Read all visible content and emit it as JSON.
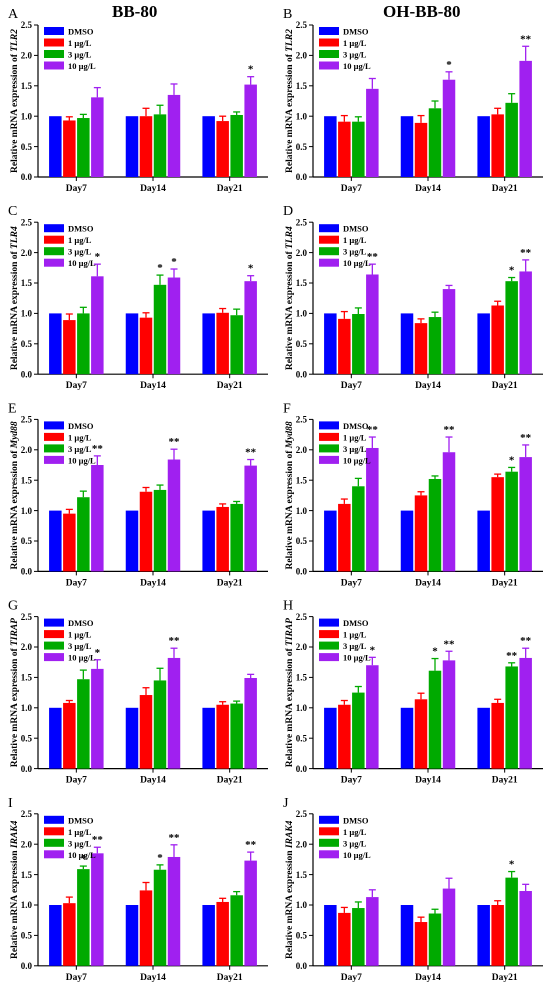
{
  "column_titles": [
    "BB-80",
    "OH-BB-80"
  ],
  "colors": {
    "DMSO": "#0000ff",
    "1 μg/L": "#ff0000",
    "3 μg/L": "#00aa00",
    "10 μg/L": "#a020f0"
  },
  "chart_data": [
    {
      "panel": "A",
      "type": "bar",
      "categories": [
        "Day7",
        "Day14",
        "Day21"
      ],
      "ylabel_prefix": "Relative mRNA expression of ",
      "gene": "TLR2",
      "ylim": [
        0,
        2.5
      ],
      "yticks": [
        "0.0",
        "0.5",
        "1.0",
        "1.5",
        "2.0",
        "2.5"
      ],
      "series": [
        {
          "name": "DMSO",
          "values": [
            1.0,
            1.0,
            1.0
          ],
          "errors": [
            0.0,
            0.0,
            0.0
          ]
        },
        {
          "name": "1 μg/L",
          "values": [
            0.93,
            1.0,
            0.92
          ],
          "errors": [
            0.06,
            0.13,
            0.08
          ]
        },
        {
          "name": "3 μg/L",
          "values": [
            0.97,
            1.03,
            1.02
          ],
          "errors": [
            0.06,
            0.15,
            0.05
          ]
        },
        {
          "name": "10 μg/L",
          "values": [
            1.31,
            1.35,
            1.52
          ],
          "errors": [
            0.16,
            0.18,
            0.13
          ]
        }
      ],
      "marks": [
        [
          "",
          "",
          ""
        ],
        [
          "",
          "",
          ""
        ],
        [
          "",
          "",
          ""
        ],
        [
          "",
          "",
          "*"
        ]
      ]
    },
    {
      "panel": "B",
      "type": "bar",
      "categories": [
        "Day7",
        "Day14",
        "Day21"
      ],
      "ylabel_prefix": "Relative mRNA expression of ",
      "gene": "TLR2",
      "ylim": [
        0,
        2.5
      ],
      "yticks": [
        "0.0",
        "0.5",
        "1.0",
        "1.5",
        "2.0",
        "2.5"
      ],
      "series": [
        {
          "name": "DMSO",
          "values": [
            1.0,
            1.0,
            1.0
          ],
          "errors": [
            0.0,
            0.0,
            0.0
          ]
        },
        {
          "name": "1 μg/L",
          "values": [
            0.91,
            0.89,
            1.03
          ],
          "errors": [
            0.1,
            0.12,
            0.1
          ]
        },
        {
          "name": "3 μg/L",
          "values": [
            0.91,
            1.13,
            1.22
          ],
          "errors": [
            0.08,
            0.12,
            0.15
          ]
        },
        {
          "name": "10 μg/L",
          "values": [
            1.45,
            1.6,
            1.91
          ],
          "errors": [
            0.17,
            0.13,
            0.24
          ]
        }
      ],
      "marks": [
        [
          "",
          "",
          ""
        ],
        [
          "",
          "",
          ""
        ],
        [
          "",
          "",
          ""
        ],
        [
          "",
          "*",
          "**"
        ]
      ]
    },
    {
      "panel": "C",
      "type": "bar",
      "categories": [
        "Day7",
        "Day14",
        "Day21"
      ],
      "ylabel_prefix": "Relative mRNA expression of ",
      "gene": "TLR4",
      "ylim": [
        0,
        2.5
      ],
      "yticks": [
        "0.0",
        "0.5",
        "1.0",
        "1.5",
        "2.0",
        "2.5"
      ],
      "series": [
        {
          "name": "DMSO",
          "values": [
            1.0,
            1.0,
            1.0
          ],
          "errors": [
            0.0,
            0.0,
            0.0
          ]
        },
        {
          "name": "1 μg/L",
          "values": [
            0.89,
            0.93,
            1.01
          ],
          "errors": [
            0.1,
            0.08,
            0.07
          ]
        },
        {
          "name": "3 μg/L",
          "values": [
            1.0,
            1.47,
            0.97
          ],
          "errors": [
            0.1,
            0.16,
            0.1
          ]
        },
        {
          "name": "10 μg/L",
          "values": [
            1.61,
            1.59,
            1.53
          ],
          "errors": [
            0.2,
            0.14,
            0.09
          ]
        }
      ],
      "marks": [
        [
          "",
          "",
          ""
        ],
        [
          "",
          "",
          ""
        ],
        [
          "",
          "*",
          ""
        ],
        [
          "*",
          "*",
          "*"
        ]
      ]
    },
    {
      "panel": "D",
      "type": "bar",
      "categories": [
        "Day7",
        "Day14",
        "Day21"
      ],
      "ylabel_prefix": "Relative mRNA expression of ",
      "gene": "TLR4",
      "ylim": [
        0,
        2.5
      ],
      "yticks": [
        "0.0",
        "0.5",
        "1.0",
        "1.5",
        "2.0",
        "2.5"
      ],
      "series": [
        {
          "name": "DMSO",
          "values": [
            1.0,
            1.0,
            1.0
          ],
          "errors": [
            0.0,
            0.0,
            0.0
          ]
        },
        {
          "name": "1 μg/L",
          "values": [
            0.91,
            0.84,
            1.13
          ],
          "errors": [
            0.12,
            0.07,
            0.07
          ]
        },
        {
          "name": "3 μg/L",
          "values": [
            0.99,
            0.94,
            1.53
          ],
          "errors": [
            0.1,
            0.08,
            0.06
          ]
        },
        {
          "name": "10 μg/L",
          "values": [
            1.64,
            1.4,
            1.69
          ],
          "errors": [
            0.17,
            0.06,
            0.19
          ]
        }
      ],
      "marks": [
        [
          "",
          "",
          ""
        ],
        [
          "",
          "",
          ""
        ],
        [
          "",
          "",
          "*"
        ],
        [
          "**",
          "",
          "**"
        ]
      ]
    },
    {
      "panel": "E",
      "type": "bar",
      "categories": [
        "Day7",
        "Day14",
        "Day21"
      ],
      "ylabel_prefix": "Relative mRNA expression of ",
      "gene": "Myd88",
      "ylim": [
        0,
        2.5
      ],
      "yticks": [
        "0.0",
        "0.5",
        "1.0",
        "1.5",
        "2.0",
        "2.5"
      ],
      "series": [
        {
          "name": "DMSO",
          "values": [
            1.0,
            1.0,
            1.0
          ],
          "errors": [
            0.0,
            0.0,
            0.0
          ]
        },
        {
          "name": "1 μg/L",
          "values": [
            0.95,
            1.31,
            1.06
          ],
          "errors": [
            0.07,
            0.07,
            0.05
          ]
        },
        {
          "name": "3 μg/L",
          "values": [
            1.22,
            1.34,
            1.11
          ],
          "errors": [
            0.1,
            0.08,
            0.04
          ]
        },
        {
          "name": "10 μg/L",
          "values": [
            1.75,
            1.84,
            1.74
          ],
          "errors": [
            0.15,
            0.17,
            0.1
          ]
        }
      ],
      "marks": [
        [
          "",
          "",
          ""
        ],
        [
          "",
          "",
          ""
        ],
        [
          "",
          "",
          ""
        ],
        [
          "**",
          "**",
          "**"
        ]
      ]
    },
    {
      "panel": "F",
      "type": "bar",
      "categories": [
        "Day7",
        "Day14",
        "Day21"
      ],
      "ylabel_prefix": "Relative mRNA expression of ",
      "gene": "Myd88",
      "ylim": [
        0,
        2.5
      ],
      "yticks": [
        "0.0",
        "0.5",
        "1.0",
        "1.5",
        "2.0",
        "2.5"
      ],
      "series": [
        {
          "name": "DMSO",
          "values": [
            1.0,
            1.0,
            1.0
          ],
          "errors": [
            0.0,
            0.0,
            0.0
          ]
        },
        {
          "name": "1 μg/L",
          "values": [
            1.11,
            1.25,
            1.55
          ],
          "errors": [
            0.08,
            0.06,
            0.05
          ]
        },
        {
          "name": "3 μg/L",
          "values": [
            1.4,
            1.52,
            1.64
          ],
          "errors": [
            0.13,
            0.05,
            0.07
          ]
        },
        {
          "name": "10 μg/L",
          "values": [
            2.03,
            1.96,
            1.88
          ],
          "errors": [
            0.18,
            0.25,
            0.2
          ]
        }
      ],
      "marks": [
        [
          "",
          "",
          ""
        ],
        [
          "",
          "",
          ""
        ],
        [
          "",
          "",
          "*"
        ],
        [
          "**",
          "**",
          "**"
        ]
      ]
    },
    {
      "panel": "G",
      "type": "bar",
      "categories": [
        "Day7",
        "Day14",
        "Day21"
      ],
      "ylabel_prefix": "Relative mRNA expression of ",
      "gene": "TIRAP",
      "ylim": [
        0,
        2.5
      ],
      "yticks": [
        "0.0",
        "0.5",
        "1.0",
        "1.5",
        "2.0",
        "2.5"
      ],
      "series": [
        {
          "name": "DMSO",
          "values": [
            1.0,
            1.0,
            1.0
          ],
          "errors": [
            0.0,
            0.0,
            0.0
          ]
        },
        {
          "name": "1 μg/L",
          "values": [
            1.08,
            1.21,
            1.05
          ],
          "errors": [
            0.04,
            0.12,
            0.05
          ]
        },
        {
          "name": "3 μg/L",
          "values": [
            1.47,
            1.45,
            1.07
          ],
          "errors": [
            0.15,
            0.2,
            0.04
          ]
        },
        {
          "name": "10 μg/L",
          "values": [
            1.64,
            1.82,
            1.49
          ],
          "errors": [
            0.15,
            0.16,
            0.06
          ]
        }
      ],
      "marks": [
        [
          "",
          "",
          ""
        ],
        [
          "",
          "",
          ""
        ],
        [
          "",
          "",
          ""
        ],
        [
          "*",
          "**",
          ""
        ]
      ]
    },
    {
      "panel": "H",
      "type": "bar",
      "categories": [
        "Day7",
        "Day14",
        "Day21"
      ],
      "ylabel_prefix": "Relative mRNA expression of ",
      "gene": "TIRAP",
      "ylim": [
        0,
        2.5
      ],
      "yticks": [
        "0.0",
        "0.5",
        "1.0",
        "1.5",
        "2.0",
        "2.5"
      ],
      "series": [
        {
          "name": "DMSO",
          "values": [
            1.0,
            1.0,
            1.0
          ],
          "errors": [
            0.0,
            0.0,
            0.0
          ]
        },
        {
          "name": "1 μg/L",
          "values": [
            1.05,
            1.14,
            1.08
          ],
          "errors": [
            0.07,
            0.1,
            0.06
          ]
        },
        {
          "name": "3 μg/L",
          "values": [
            1.25,
            1.61,
            1.68
          ],
          "errors": [
            0.1,
            0.2,
            0.06
          ]
        },
        {
          "name": "10 μg/L",
          "values": [
            1.7,
            1.78,
            1.82
          ],
          "errors": [
            0.13,
            0.15,
            0.16
          ]
        }
      ],
      "marks": [
        [
          "",
          "",
          ""
        ],
        [
          "",
          "",
          ""
        ],
        [
          "",
          "*",
          "**"
        ],
        [
          "*",
          "**",
          "**"
        ]
      ]
    },
    {
      "panel": "I",
      "type": "bar",
      "categories": [
        "Day7",
        "Day14",
        "Day21"
      ],
      "ylabel_prefix": "Relative mRNA expression ",
      "gene": "IRAK4",
      "ylim": [
        0,
        2.5
      ],
      "yticks": [
        "0.0",
        "0.5",
        "1.0",
        "1.5",
        "2.0",
        "2.5"
      ],
      "series": [
        {
          "name": "DMSO",
          "values": [
            1.0,
            1.0,
            1.0
          ],
          "errors": [
            0.0,
            0.0,
            0.0
          ]
        },
        {
          "name": "1 μg/L",
          "values": [
            1.03,
            1.24,
            1.05
          ],
          "errors": [
            0.1,
            0.13,
            0.06
          ]
        },
        {
          "name": "3 μg/L",
          "values": [
            1.59,
            1.58,
            1.16
          ],
          "errors": [
            0.05,
            0.08,
            0.06
          ]
        },
        {
          "name": "10 μg/L",
          "values": [
            1.85,
            1.79,
            1.73
          ],
          "errors": [
            0.1,
            0.2,
            0.14
          ]
        }
      ],
      "marks": [
        [
          "",
          "",
          ""
        ],
        [
          "",
          "",
          ""
        ],
        [
          "*",
          "*",
          ""
        ],
        [
          "**",
          "**",
          "**"
        ]
      ]
    },
    {
      "panel": "J",
      "type": "bar",
      "categories": [
        "Day7",
        "Day14",
        "Day21"
      ],
      "ylabel_prefix": "Relative mRNA expression ",
      "gene": "IRAK4",
      "ylim": [
        0,
        2.5
      ],
      "yticks": [
        "0.0",
        "0.5",
        "1.0",
        "1.5",
        "2.0",
        "2.5"
      ],
      "series": [
        {
          "name": "DMSO",
          "values": [
            1.0,
            1.0,
            1.0
          ],
          "errors": [
            0.0,
            0.0,
            0.0
          ]
        },
        {
          "name": "1 μg/L",
          "values": [
            0.87,
            0.72,
            1.0
          ],
          "errors": [
            0.09,
            0.08,
            0.07
          ]
        },
        {
          "name": "3 μg/L",
          "values": [
            0.95,
            0.86,
            1.45
          ],
          "errors": [
            0.1,
            0.07,
            0.1
          ]
        },
        {
          "name": "10 μg/L",
          "values": [
            1.13,
            1.27,
            1.23
          ],
          "errors": [
            0.12,
            0.17,
            0.11
          ]
        }
      ],
      "marks": [
        [
          "",
          "",
          ""
        ],
        [
          "",
          "",
          ""
        ],
        [
          "",
          "",
          "*"
        ],
        [
          "",
          "",
          ""
        ]
      ]
    }
  ]
}
